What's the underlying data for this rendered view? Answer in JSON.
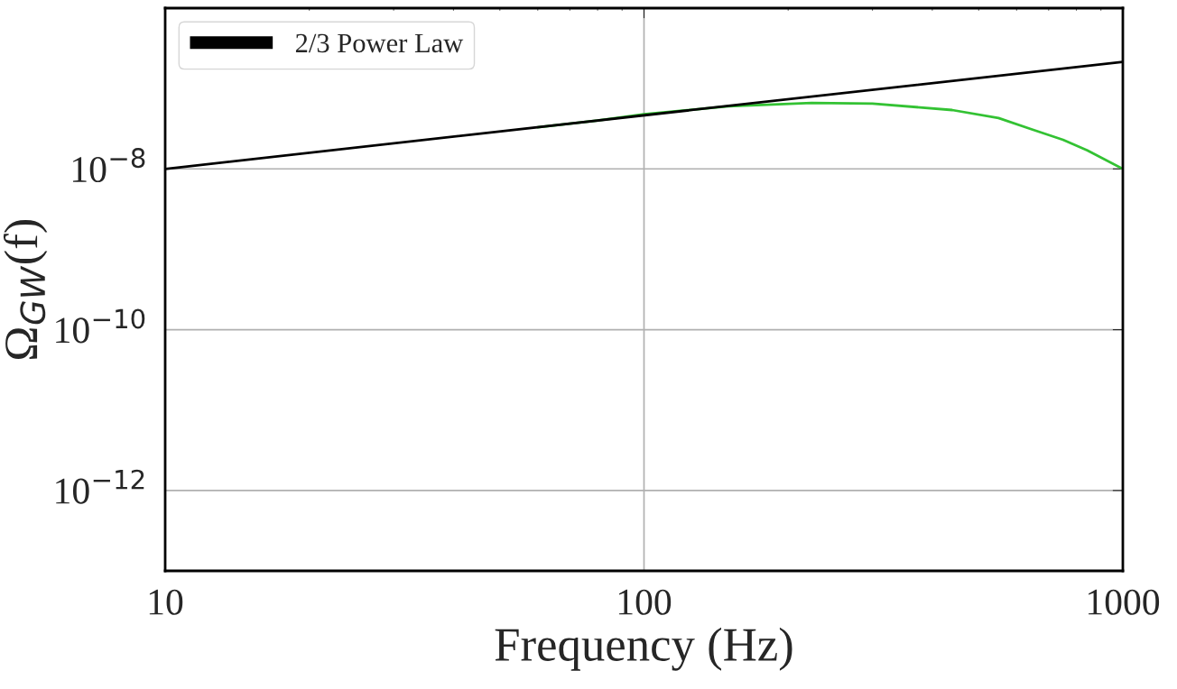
{
  "chart_data": {
    "type": "line",
    "xlabel": "Frequency (Hz)",
    "ylabel": "Ω$_{GW}$(f)",
    "log": "xy",
    "xlim": [
      10,
      1000
    ],
    "xticks": [
      10,
      100,
      1000
    ],
    "ylim": [
      1e-13,
      1e-06
    ],
    "yticks": [
      {
        "value": 1e-08,
        "label": "10$^{−8}$"
      },
      {
        "value": 1e-10,
        "label": "10$^{−10}$"
      },
      {
        "value": 1e-12,
        "label": "10$^{−12}$"
      }
    ],
    "grid": true,
    "legend": "top left",
    "series": [
      {
        "color": "#33c233",
        "x": [
          60,
          80,
          100,
          150,
          224,
          300,
          440,
          550,
          646,
          750,
          843,
          1000
        ],
        "values": [
          3.3e-08,
          4e-08,
          4.8e-08,
          6e-08,
          6.6e-08,
          6.5e-08,
          5.4e-08,
          4.3e-08,
          3.1e-08,
          2.3e-08,
          1.7e-08,
          1e-08
        ]
      },
      {
        "name": "2/3 Power Law",
        "color": "#000000",
        "x": [
          10,
          1000
        ],
        "values": [
          1e-08,
          2.15e-07
        ]
      }
    ]
  }
}
